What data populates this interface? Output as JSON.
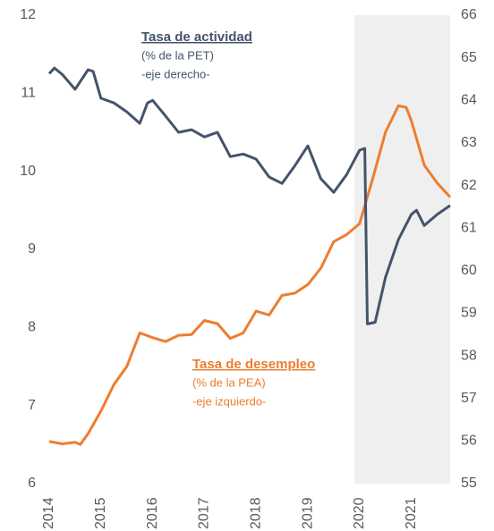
{
  "chart_data": {
    "type": "line",
    "annotations": [
      {
        "lines": [
          "Tasa de actividad",
          "(% de la PET)",
          "-eje derecho-"
        ],
        "color": "#44546a"
      },
      {
        "lines": [
          "Tasa de desempleo",
          "(% de la PEA)",
          "-eje izquierdo-"
        ],
        "color": "#ed7d31"
      }
    ],
    "xlim": [
      2014,
      2021.75
    ],
    "xticks": [
      2014,
      2015,
      2016,
      2017,
      2018,
      2019,
      2020,
      2021
    ],
    "ylim": [
      6,
      12
    ],
    "yticks": [
      6,
      7,
      8,
      9,
      10,
      11,
      12
    ],
    "y2lim": [
      55,
      66
    ],
    "y2ticks": [
      55,
      56,
      57,
      58,
      59,
      60,
      61,
      62,
      63,
      64,
      65,
      66
    ],
    "shade_x": [
      2019.9,
      2021.75
    ],
    "shade_color": "#efefef",
    "series": [
      {
        "name": "Tasa de desempleo",
        "color": "#ed7d31",
        "axis": "y",
        "x": [
          2014.0,
          2014.25,
          2014.5,
          2014.6,
          2014.75,
          2015.0,
          2015.25,
          2015.5,
          2015.75,
          2016.0,
          2016.25,
          2016.5,
          2016.75,
          2017.0,
          2017.25,
          2017.5,
          2017.75,
          2018.0,
          2018.25,
          2018.5,
          2018.75,
          2019.0,
          2019.25,
          2019.5,
          2019.75,
          2020.0,
          2020.25,
          2020.5,
          2020.75,
          2020.9,
          2021.0,
          2021.25,
          2021.5,
          2021.75
        ],
        "values": [
          6.54,
          6.51,
          6.53,
          6.5,
          6.64,
          6.93,
          7.27,
          7.5,
          7.93,
          7.87,
          7.82,
          7.9,
          7.91,
          8.09,
          8.05,
          7.86,
          7.93,
          8.21,
          8.16,
          8.41,
          8.44,
          8.55,
          8.76,
          9.1,
          9.19,
          9.33,
          9.9,
          10.5,
          10.84,
          10.82,
          10.65,
          10.08,
          9.85,
          9.67
        ]
      },
      {
        "name": "Tasa de actividad",
        "color": "#44546a",
        "axis": "y2",
        "x": [
          2014.0,
          2014.1,
          2014.25,
          2014.5,
          2014.75,
          2014.85,
          2015.0,
          2015.25,
          2015.5,
          2015.75,
          2015.9,
          2016.0,
          2016.25,
          2016.5,
          2016.75,
          2017.0,
          2017.25,
          2017.5,
          2017.75,
          2018.0,
          2018.25,
          2018.5,
          2018.75,
          2019.0,
          2019.25,
          2019.5,
          2019.75,
          2020.0,
          2020.1,
          2020.15,
          2020.3,
          2020.5,
          2020.75,
          2021.0,
          2021.1,
          2021.25,
          2021.5,
          2021.75
        ],
        "values": [
          64.63,
          64.76,
          64.61,
          64.26,
          64.72,
          64.68,
          64.05,
          63.94,
          63.73,
          63.46,
          63.94,
          64.0,
          63.63,
          63.25,
          63.31,
          63.14,
          63.25,
          62.68,
          62.74,
          62.62,
          62.2,
          62.05,
          62.47,
          62.93,
          62.16,
          61.84,
          62.26,
          62.83,
          62.87,
          58.75,
          58.79,
          59.84,
          60.73,
          61.32,
          61.42,
          61.06,
          61.32,
          61.53
        ]
      }
    ]
  }
}
